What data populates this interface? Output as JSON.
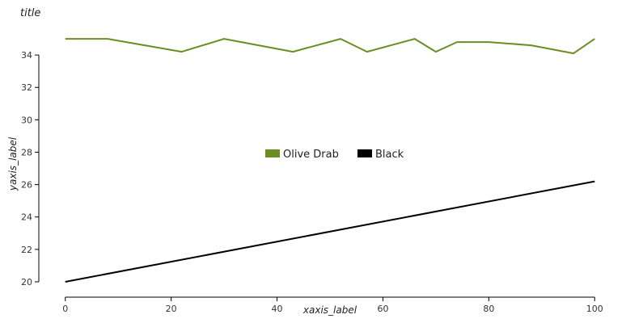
{
  "chart_data": {
    "type": "line",
    "title": "title",
    "xlabel": "xaxis_label",
    "ylabel": "yaxis_label",
    "xlim": [
      -5,
      105
    ],
    "ylim": [
      19.7,
      35.9
    ],
    "xticks": [
      0,
      20,
      40,
      60,
      80,
      100
    ],
    "yticks": [
      20,
      22,
      24,
      26,
      28,
      30,
      32,
      34
    ],
    "grid": false,
    "legend_position": "center",
    "series": [
      {
        "name": "Olive Drab",
        "color": "#6b8e23",
        "x": [
          0,
          8,
          22,
          30,
          43,
          52,
          57,
          66,
          70,
          74,
          80,
          88,
          96,
          100
        ],
        "y": [
          35.0,
          35.0,
          34.2,
          35.0,
          34.2,
          35.0,
          34.2,
          35.0,
          34.2,
          34.8,
          34.8,
          34.6,
          34.1,
          35.0
        ]
      },
      {
        "name": "Black",
        "color": "#000000",
        "x": [
          0,
          100
        ],
        "y": [
          20.0,
          26.2
        ]
      }
    ]
  }
}
